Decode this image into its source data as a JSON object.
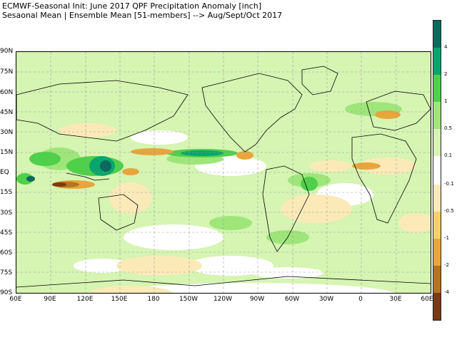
{
  "header": {
    "line1": "ECMWF-Seasonal Init: June 2017 QPF Precipitation Anomaly [inch]",
    "line2": "Sesaonal Mean | Ensemble Mean [51-members] --> Aug/Sept/Oct 2017"
  },
  "map": {
    "lat_labels": [
      "90N",
      "75N",
      "60N",
      "45N",
      "30N",
      "15N",
      "EQ",
      "15S",
      "30S",
      "45S",
      "60S",
      "75S",
      "90S"
    ],
    "lon_labels": [
      "60E",
      "90E",
      "120E",
      "150E",
      "180",
      "150W",
      "120W",
      "90W",
      "60W",
      "30W",
      "0",
      "30E",
      "60E"
    ]
  },
  "legend": {
    "labels": [
      "4",
      "2",
      "1",
      "0.5",
      "0.1",
      "-0.1",
      "-0.5",
      "-1",
      "-2",
      "-4"
    ],
    "colors": {
      "gt4": "#0b6a5c",
      "c2_4": "#0aa56e",
      "c1_2": "#4fd04a",
      "c05_1": "#9fe67a",
      "c01_05": "#d6f4b2",
      "neutral": "#ffffff",
      "m01_05": "#fbeab8",
      "m05_1": "#f6cf6b",
      "m1_2": "#e8a53c",
      "m2_4": "#b5741f",
      "lt4": "#7a3a12"
    }
  }
}
